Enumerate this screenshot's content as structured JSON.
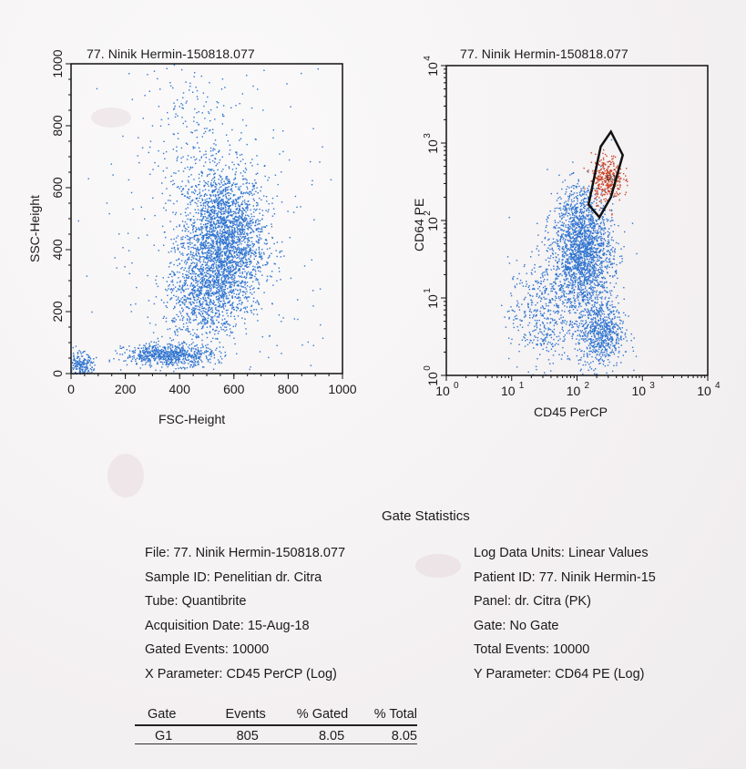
{
  "plots": {
    "left_title": "77. Ninik Hermin-150818.077",
    "right_title": "77. Ninik Hermin-150818.077"
  },
  "chart_data": [
    {
      "type": "scatter",
      "title": "77. Ninik Hermin-150818.077",
      "xlabel": "FSC-Height",
      "ylabel": "SSC-Height",
      "xlim": [
        0,
        1000
      ],
      "ylim": [
        0,
        1000
      ],
      "x_ticks": [
        0,
        200,
        400,
        600,
        800,
        1000
      ],
      "y_ticks": [
        0,
        200,
        400,
        600,
        800,
        1000
      ],
      "point_color": "#2f74d0",
      "clusters": [
        {
          "x": 560,
          "y": 430,
          "sx": 75,
          "sy": 120,
          "n": 2600
        },
        {
          "x": 480,
          "y": 250,
          "sx": 70,
          "sy": 75,
          "n": 700
        },
        {
          "x": 360,
          "y": 62,
          "sx": 80,
          "sy": 18,
          "n": 700
        },
        {
          "x": 30,
          "y": 20,
          "sx": 25,
          "sy": 25,
          "n": 250
        },
        {
          "x": 440,
          "y": 780,
          "sx": 90,
          "sy": 140,
          "n": 180
        },
        {
          "x": 550,
          "y": 450,
          "sx": 220,
          "sy": 300,
          "n": 300
        }
      ]
    },
    {
      "type": "scatter",
      "title": "77. Ninik Hermin-150818.077",
      "xlabel": "CD45 PerCP",
      "ylabel": "CD64 PE",
      "xscale": "log",
      "yscale": "log",
      "xlim": [
        1,
        10000
      ],
      "ylim": [
        1,
        10000
      ],
      "x_ticks": [
        "10^0",
        "10^1",
        "10^2",
        "10^3",
        "10^4"
      ],
      "y_ticks": [
        "10^0",
        "10^1",
        "10^2",
        "10^3",
        "10^4"
      ],
      "point_color": "#2f74d0",
      "gate_color": "#c8472c",
      "gate_label": "G1",
      "gate_polygon": [
        [
          150,
          160
        ],
        [
          230,
          900
        ],
        [
          330,
          1400
        ],
        [
          500,
          700
        ],
        [
          330,
          200
        ],
        [
          220,
          110
        ]
      ],
      "clusters": [
        {
          "lx": 2.08,
          "ly": 1.55,
          "sx": 0.23,
          "sy": 0.35,
          "n": 1800
        },
        {
          "lx": 2.35,
          "ly": 0.55,
          "sx": 0.18,
          "sy": 0.22,
          "n": 700
        },
        {
          "lx": 1.45,
          "ly": 0.8,
          "sx": 0.25,
          "sy": 0.35,
          "n": 450
        },
        {
          "lx": 2.45,
          "ly": 2.55,
          "sx": 0.12,
          "sy": 0.15,
          "n": 350,
          "gated": true
        },
        {
          "lx": 2.0,
          "ly": 2.1,
          "sx": 0.18,
          "sy": 0.2,
          "n": 250
        }
      ]
    }
  ],
  "stats": {
    "title": "Gate Statistics",
    "left": [
      "File: 77. Ninik Hermin-150818.077",
      "Sample ID: Penelitian dr. Citra",
      "Tube: Quantibrite",
      "Acquisition Date: 15-Aug-18",
      "Gated Events: 10000",
      "X Parameter: CD45 PerCP (Log)"
    ],
    "right": [
      "Log Data Units: Linear Values",
      "Patient ID: 77. Ninik Hermin-15",
      "Panel: dr. Citra (PK)",
      "Gate: No Gate",
      "Total Events: 10000",
      "Y Parameter: CD64 PE (Log)"
    ],
    "table": {
      "headers": [
        "Gate",
        "Events",
        "% Gated",
        "% Total"
      ],
      "rows": [
        [
          "G1",
          "805",
          "8.05",
          "8.05"
        ]
      ]
    }
  }
}
